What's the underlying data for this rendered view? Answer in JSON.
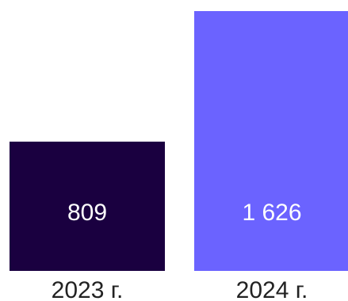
{
  "chart_data": {
    "type": "bar",
    "categories": [
      "2023 г.",
      "2024 г."
    ],
    "values": [
      809,
      1626
    ],
    "value_labels": [
      "809",
      "1 626"
    ],
    "colors": [
      "#1a0040",
      "#6b63ff"
    ],
    "grid": false,
    "legend": "none"
  }
}
